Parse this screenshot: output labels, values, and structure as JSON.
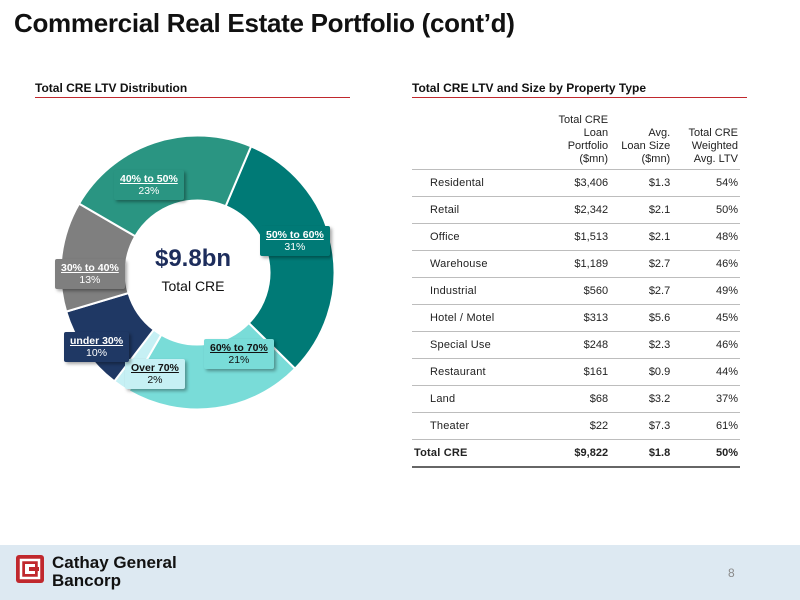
{
  "page": {
    "title": "Commercial Real Estate Portfolio (cont’d)",
    "page_number": "8"
  },
  "left_section": {
    "title": "Total CRE LTV Distribution"
  },
  "right_section": {
    "title": "Total CRE LTV and Size by Property Type"
  },
  "chart_data": {
    "type": "pie",
    "title": "Total CRE LTV Distribution",
    "center_value": "$9.8bn",
    "center_label": "Total CRE",
    "slices": [
      {
        "label": "50% to 60%",
        "pct_label": "31%",
        "value": 31,
        "color": "#007a76"
      },
      {
        "label": "60% to 70%",
        "pct_label": "21%",
        "value": 21,
        "color": "#79dcd8"
      },
      {
        "label": "Over 70%",
        "pct_label": "2%",
        "value": 2,
        "color": "#c6f0f4"
      },
      {
        "label": "under 30%",
        "pct_label": "10%",
        "value": 10,
        "color": "#1f3864"
      },
      {
        "label": "30% to 40%",
        "pct_label": "13%",
        "value": 13,
        "color": "#7f7f7f"
      },
      {
        "label": "40% to 50%",
        "pct_label": "23%",
        "value": 23,
        "color": "#2a9582"
      }
    ]
  },
  "table": {
    "headers": [
      {
        "line1": "",
        "line2": "",
        "line3": ""
      },
      {
        "line1": "Total CRE Loan",
        "line2": "Portfolio",
        "line3": "($mn)"
      },
      {
        "line1": "Avg.",
        "line2": "Loan Size",
        "line3": "($mn)"
      },
      {
        "line1": "Total CRE",
        "line2": "Weighted",
        "line3": "Avg. LTV"
      }
    ],
    "rows": [
      {
        "type": "Residental",
        "portfolio": "$3,406",
        "avg": "$1.3",
        "ltv": "54%"
      },
      {
        "type": "Retail",
        "portfolio": "$2,342",
        "avg": "$2.1",
        "ltv": "50%"
      },
      {
        "type": "Office",
        "portfolio": "$1,513",
        "avg": "$2.1",
        "ltv": "48%"
      },
      {
        "type": "Warehouse",
        "portfolio": "$1,189",
        "avg": "$2.7",
        "ltv": "46%"
      },
      {
        "type": "Industrial",
        "portfolio": "$560",
        "avg": "$2.7",
        "ltv": "49%"
      },
      {
        "type": "Hotel / Motel",
        "portfolio": "$313",
        "avg": "$5.6",
        "ltv": "45%"
      },
      {
        "type": "Special Use",
        "portfolio": "$248",
        "avg": "$2.3",
        "ltv": "46%"
      },
      {
        "type": "Restaurant",
        "portfolio": "$161",
        "avg": "$0.9",
        "ltv": "44%"
      },
      {
        "type": "Land",
        "portfolio": "$68",
        "avg": "$3.2",
        "ltv": "37%"
      },
      {
        "type": "Theater",
        "portfolio": "$22",
        "avg": "$7.3",
        "ltv": "61%"
      }
    ],
    "total": {
      "type": "Total CRE",
      "portfolio": "$9,822",
      "avg": "$1.8",
      "ltv": "50%"
    }
  },
  "footer": {
    "logo_line1": "Cathay General",
    "logo_line2": "Bancorp",
    "logo_icon": "cathay-logo-icon",
    "brand_color": "#c0282d"
  }
}
